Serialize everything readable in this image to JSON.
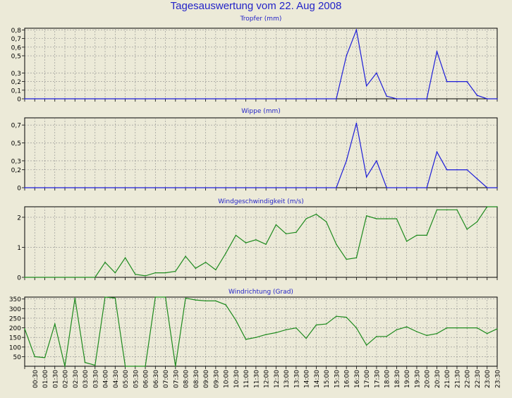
{
  "title": "Tagesauswertung vom 22. Aug 2008",
  "colors": {
    "background": "#ecead8",
    "title": "#2323c8",
    "blue_series": "#1d1dd8",
    "green_series": "#1e8a1e",
    "grid": "#8c8c8c"
  },
  "x_labels": [
    "00:30",
    "01:00",
    "01:30",
    "02:00",
    "02:30",
    "03:00",
    "03:30",
    "04:00",
    "04:30",
    "05:00",
    "05:30",
    "06:00",
    "06:30",
    "07:00",
    "07:30",
    "08:00",
    "08:30",
    "09:00",
    "09:30",
    "10:00",
    "10:30",
    "11:00",
    "11:30",
    "12:00",
    "12:30",
    "13:00",
    "13:30",
    "14:00",
    "14:30",
    "15:00",
    "15:30",
    "16:00",
    "16:30",
    "17:00",
    "17:30",
    "18:00",
    "18:30",
    "19:00",
    "19:30",
    "20:00",
    "20:30",
    "21:00",
    "21:30",
    "22:00",
    "22:30",
    "23:00",
    "23:30"
  ],
  "chart_data": [
    {
      "type": "line",
      "title": "Tropfer (mm)",
      "ylim": [
        0,
        0.82
      ],
      "yticks": [
        0,
        0.1,
        0.2,
        0.3,
        0.5,
        0.6,
        0.7,
        0.8
      ],
      "ytick_labels": [
        "0",
        "0,1",
        "0,2",
        "0,3",
        "0,5",
        "0,6",
        "0,7",
        "0,8"
      ],
      "color": "#1d1dd8",
      "x": [
        0,
        0.5,
        1,
        1.5,
        2,
        2.5,
        3,
        3.5,
        4,
        4.5,
        5,
        5.5,
        6,
        6.5,
        7,
        7.5,
        8,
        8.5,
        9,
        9.5,
        10,
        10.5,
        11,
        11.5,
        12,
        12.5,
        13,
        13.5,
        14,
        14.5,
        15,
        15.5,
        16,
        16.5,
        17,
        17.5,
        18,
        18.5,
        19,
        19.5,
        20,
        20.5,
        21,
        21.5,
        22,
        22.5,
        23,
        23.5
      ],
      "values": [
        0,
        0,
        0,
        0,
        0,
        0,
        0,
        0,
        0,
        0,
        0,
        0,
        0,
        0,
        0,
        0,
        0,
        0,
        0,
        0,
        0,
        0,
        0,
        0,
        0,
        0,
        0,
        0,
        0,
        0,
        0,
        0,
        0.5,
        0.8,
        0.15,
        0.3,
        0.03,
        0,
        0,
        0,
        0,
        0.55,
        0.2,
        0.2,
        0.2,
        0.04,
        0,
        0
      ]
    },
    {
      "type": "line",
      "title": "Wippe (mm)",
      "ylim": [
        0,
        0.78
      ],
      "yticks": [
        0,
        0.2,
        0.3,
        0.5,
        0.7
      ],
      "ytick_labels": [
        "0",
        "0,2",
        "0,3",
        "0,5",
        "0,7"
      ],
      "color": "#1d1dd8",
      "x": [
        0,
        0.5,
        1,
        1.5,
        2,
        2.5,
        3,
        3.5,
        4,
        4.5,
        5,
        5.5,
        6,
        6.5,
        7,
        7.5,
        8,
        8.5,
        9,
        9.5,
        10,
        10.5,
        11,
        11.5,
        12,
        12.5,
        13,
        13.5,
        14,
        14.5,
        15,
        15.5,
        16,
        16.5,
        17,
        17.5,
        18,
        18.5,
        19,
        19.5,
        20,
        20.5,
        21,
        21.5,
        22,
        22.5,
        23,
        23.5
      ],
      "values": [
        0,
        0,
        0,
        0,
        0,
        0,
        0,
        0,
        0,
        0,
        0,
        0,
        0,
        0,
        0,
        0,
        0,
        0,
        0,
        0,
        0,
        0,
        0,
        0,
        0,
        0,
        0,
        0,
        0,
        0,
        0,
        0,
        0.3,
        0.72,
        0.12,
        0.3,
        0,
        0,
        0,
        0,
        0,
        0.4,
        0.2,
        0.2,
        0.2,
        0.1,
        0,
        0
      ]
    },
    {
      "type": "line",
      "title": "Windgeschwindigkeit (m/s)",
      "ylim": [
        0,
        2.35
      ],
      "yticks": [
        0,
        1,
        2
      ],
      "ytick_labels": [
        "0",
        "1",
        "2"
      ],
      "color": "#1e8a1e",
      "x": [
        0,
        0.5,
        1,
        1.5,
        2,
        2.5,
        3,
        3.5,
        4,
        4.5,
        5,
        5.5,
        6,
        6.5,
        7,
        7.5,
        8,
        8.5,
        9,
        9.5,
        10,
        10.5,
        11,
        11.5,
        12,
        12.5,
        13,
        13.5,
        14,
        14.5,
        15,
        15.5,
        16,
        16.5,
        17,
        17.5,
        18,
        18.5,
        19,
        19.5,
        20,
        20.5,
        21,
        21.5,
        22,
        22.5,
        23,
        23.5
      ],
      "values": [
        0,
        0,
        0,
        0,
        0,
        0,
        0,
        0,
        0.5,
        0.15,
        0.65,
        0.1,
        0.05,
        0.15,
        0.15,
        0.2,
        0.7,
        0.3,
        0.5,
        0.25,
        0.8,
        1.4,
        1.15,
        1.25,
        1.1,
        1.75,
        1.45,
        1.5,
        1.95,
        2.1,
        1.85,
        1.1,
        0.6,
        0.65,
        2.05,
        1.95,
        1.95,
        1.95,
        1.2,
        1.4,
        1.4,
        2.25,
        2.25,
        2.25,
        1.6,
        1.85,
        2.35,
        2.35
      ]
    },
    {
      "type": "line",
      "title": "Windrichtung (Grad)",
      "ylim": [
        0,
        360
      ],
      "yticks": [
        50,
        100,
        150,
        200,
        250,
        300,
        350
      ],
      "ytick_labels": [
        "50",
        "100",
        "150",
        "200",
        "250",
        "300",
        "350"
      ],
      "color": "#1e8a1e",
      "x": [
        0,
        0.5,
        1,
        1.5,
        2,
        2.5,
        3,
        3.5,
        4,
        4.5,
        5,
        5.5,
        6,
        6.5,
        7,
        7.5,
        8,
        8.5,
        9,
        9.5,
        10,
        10.5,
        11,
        11.5,
        12,
        12.5,
        13,
        13.5,
        14,
        14.5,
        15,
        15.5,
        16,
        16.5,
        17,
        17.5,
        18,
        18.5,
        19,
        19.5,
        20,
        20.5,
        21,
        21.5,
        22,
        22.5,
        23,
        23.5
      ],
      "values": [
        195,
        50,
        45,
        220,
        0,
        355,
        20,
        5,
        360,
        355,
        0,
        0,
        0,
        360,
        360,
        0,
        355,
        345,
        340,
        340,
        320,
        240,
        140,
        150,
        165,
        175,
        190,
        200,
        145,
        215,
        220,
        260,
        255,
        200,
        110,
        155,
        155,
        190,
        205,
        180,
        160,
        170,
        200,
        200,
        200,
        200,
        170,
        195
      ]
    }
  ]
}
